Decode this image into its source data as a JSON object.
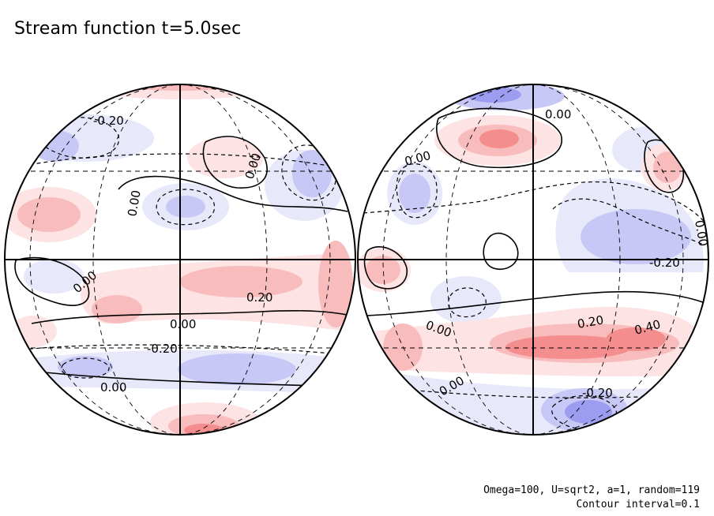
{
  "title": "Stream function t=5.0sec",
  "footnote": {
    "params": "Omega=100, U=sqrt2, a=1, random=119",
    "interval": "Contour interval=0.1"
  },
  "colors": {
    "positive_light": "#fde3e3",
    "positive_mid": "#f9bcbc",
    "positive_strong": "#f48e8e",
    "negative_light": "#e8e8fb",
    "negative_mid": "#c8c8f6",
    "negative_strong": "#9c9cf0",
    "line": "#000000"
  },
  "contour_labels": {
    "left": [
      "-0.20",
      "0.00",
      "0.00",
      "0.00",
      "0.20",
      "0.00",
      "-0.20",
      "0.00"
    ],
    "right": [
      "0.00",
      "0.00",
      "0.00",
      "-0.20",
      "0.00",
      "0.20",
      "0.40",
      "0.00",
      "-0.20"
    ]
  }
}
